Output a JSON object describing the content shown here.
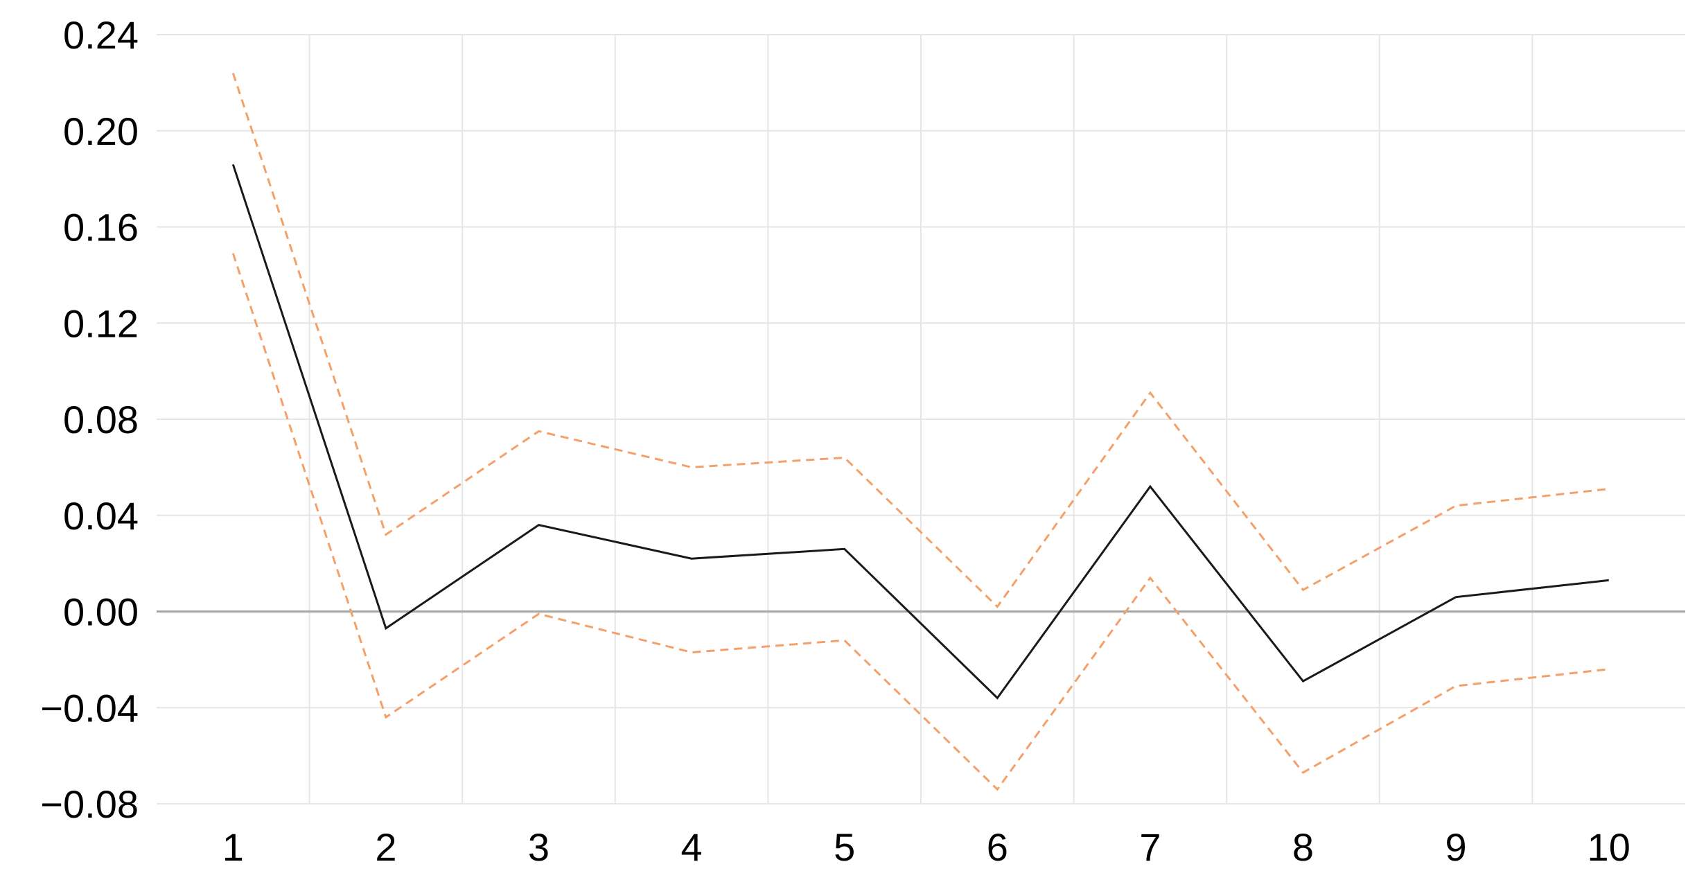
{
  "chart_data": {
    "type": "line",
    "title": "",
    "xlabel": "",
    "ylabel": "",
    "x": [
      1,
      2,
      3,
      4,
      5,
      6,
      7,
      8,
      9,
      10
    ],
    "xlim": [
      0.5,
      10.5
    ],
    "ylim": [
      -0.08,
      0.24
    ],
    "yticks": [
      -0.08,
      -0.04,
      0.0,
      0.04,
      0.08,
      0.12,
      0.16,
      0.2,
      0.24
    ],
    "ytick_labels": [
      "−0.08",
      "−0.04",
      "0.00",
      "0.04",
      "0.08",
      "0.12",
      "0.16",
      "0.20",
      "0.24"
    ],
    "xtick_labels": [
      "1",
      "2",
      "3",
      "4",
      "5",
      "6",
      "7",
      "8",
      "9",
      "10"
    ],
    "grid": true,
    "legend": "none",
    "series": [
      {
        "key": "estimate",
        "style": "solid",
        "color": "#1a1a1a",
        "values": [
          0.186,
          -0.007,
          0.036,
          0.022,
          0.026,
          -0.036,
          0.052,
          -0.029,
          0.006,
          0.013
        ]
      },
      {
        "key": "upper_bound",
        "style": "dashed",
        "color": "#f4a06a",
        "values": [
          0.224,
          0.032,
          0.075,
          0.06,
          0.064,
          0.002,
          0.091,
          0.009,
          0.044,
          0.051
        ]
      },
      {
        "key": "lower_bound",
        "style": "dashed",
        "color": "#f4a06a",
        "values": [
          0.149,
          -0.044,
          -0.001,
          -0.017,
          -0.012,
          -0.074,
          0.014,
          -0.067,
          -0.031,
          -0.024
        ]
      }
    ],
    "colors": {
      "grid": "#e6e6e6",
      "zero_line": "#a6a6a6"
    }
  }
}
